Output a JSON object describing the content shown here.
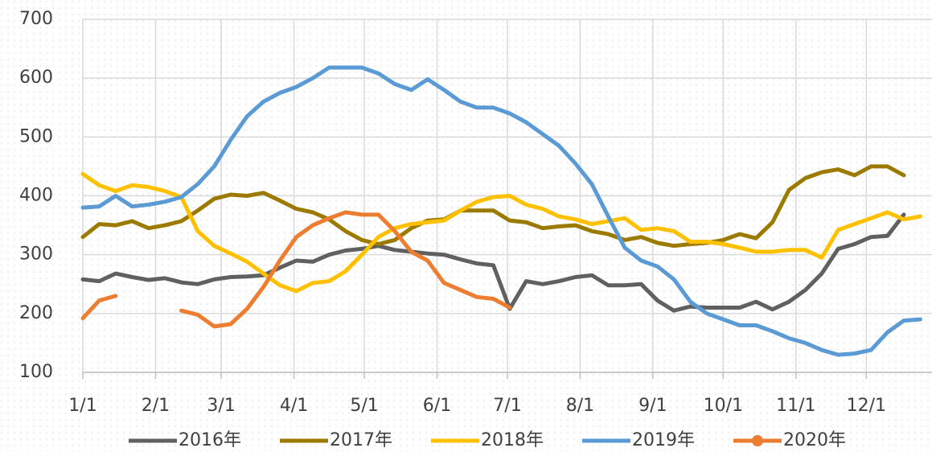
{
  "chart_data": {
    "type": "line",
    "x": [
      0,
      7,
      14,
      21,
      28,
      35,
      42,
      49,
      56,
      63,
      70,
      77,
      84,
      91,
      98,
      105,
      112,
      119,
      126,
      133,
      140,
      147,
      154,
      161,
      168,
      175,
      182,
      189,
      196,
      203,
      210,
      217,
      224,
      231,
      238,
      245,
      252,
      259,
      266,
      273,
      280,
      287,
      294,
      301,
      308,
      315,
      322,
      329,
      336,
      343,
      350,
      357
    ],
    "xlim": [
      0,
      362
    ],
    "xticks": [
      {
        "value": 0,
        "label": "1/1"
      },
      {
        "value": 31,
        "label": "2/1"
      },
      {
        "value": 59,
        "label": "3/1"
      },
      {
        "value": 90,
        "label": "4/1"
      },
      {
        "value": 120,
        "label": "5/1"
      },
      {
        "value": 151,
        "label": "6/1"
      },
      {
        "value": 181,
        "label": "7/1"
      },
      {
        "value": 212,
        "label": "8/1"
      },
      {
        "value": 243,
        "label": "9/1"
      },
      {
        "value": 273,
        "label": "10/1"
      },
      {
        "value": 304,
        "label": "11/1"
      },
      {
        "value": 334,
        "label": "12/1"
      }
    ],
    "ylim": [
      100,
      700
    ],
    "yticks": [
      100,
      200,
      300,
      400,
      500,
      600,
      700
    ],
    "grid": true,
    "legend": "bottom",
    "series": [
      {
        "name": "2016年",
        "color": "#606060",
        "values": [
          258,
          255,
          268,
          262,
          257,
          260,
          253,
          250,
          258,
          262,
          263,
          265,
          278,
          290,
          288,
          300,
          307,
          310,
          315,
          308,
          305,
          302,
          300,
          292,
          285,
          282,
          208,
          255,
          250,
          255,
          262,
          265,
          248,
          248,
          250,
          222,
          205,
          212,
          210,
          210,
          210,
          220,
          207,
          220,
          240,
          268,
          310,
          318,
          330,
          332,
          368,
          null
        ]
      },
      {
        "name": "2017年",
        "color": "#9c7a00",
        "values": [
          330,
          352,
          350,
          357,
          345,
          350,
          357,
          375,
          395,
          402,
          400,
          405,
          392,
          378,
          372,
          360,
          340,
          325,
          318,
          325,
          345,
          358,
          360,
          375,
          375,
          375,
          358,
          355,
          345,
          348,
          350,
          340,
          335,
          325,
          330,
          320,
          315,
          318,
          320,
          325,
          335,
          328,
          355,
          410,
          430,
          440,
          445,
          435,
          450,
          450,
          435,
          null
        ]
      },
      {
        "name": "2018年",
        "color": "#ffc000",
        "values": [
          437,
          418,
          408,
          418,
          415,
          408,
          398,
          340,
          315,
          302,
          288,
          268,
          248,
          238,
          252,
          255,
          272,
          300,
          330,
          345,
          352,
          355,
          358,
          375,
          390,
          398,
          400,
          385,
          378,
          365,
          360,
          352,
          357,
          362,
          342,
          345,
          340,
          322,
          322,
          318,
          312,
          305,
          305,
          308,
          308,
          295,
          342,
          352,
          362,
          372,
          360,
          365
        ]
      },
      {
        "name": "2019年",
        "color": "#5b9bd5",
        "values": [
          380,
          382,
          400,
          382,
          385,
          390,
          398,
          420,
          450,
          495,
          535,
          560,
          575,
          585,
          600,
          618,
          618,
          618,
          608,
          590,
          580,
          598,
          580,
          560,
          550,
          550,
          540,
          525,
          505,
          485,
          455,
          420,
          365,
          312,
          290,
          280,
          258,
          220,
          200,
          190,
          180,
          180,
          170,
          158,
          150,
          138,
          130,
          132,
          138,
          168,
          188,
          190
        ]
      },
      {
        "name": "2020年",
        "color": "#ed7d31",
        "values": [
          192,
          222,
          230,
          null,
          null,
          null,
          205,
          198,
          178,
          182,
          208,
          245,
          290,
          330,
          350,
          362,
          372,
          368,
          368,
          340,
          305,
          290,
          252,
          240,
          228,
          225,
          210,
          null,
          null,
          null,
          null,
          null,
          null,
          null,
          null,
          null,
          null,
          null,
          null,
          null,
          null,
          null,
          null,
          null,
          null,
          null,
          null,
          null,
          null,
          null,
          null,
          null
        ]
      }
    ]
  }
}
